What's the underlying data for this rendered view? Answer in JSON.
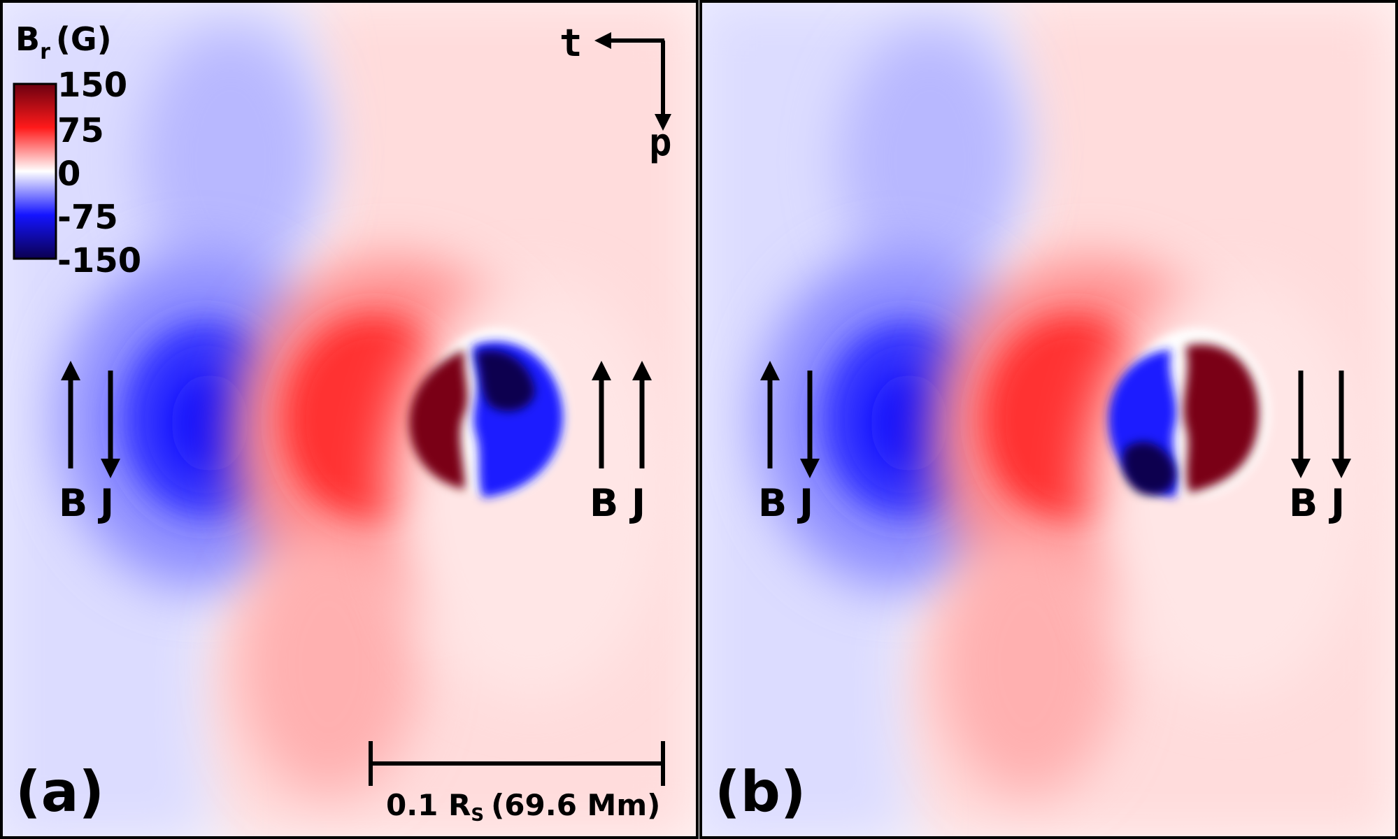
{
  "colorbar": {
    "quantity": "B",
    "quantity_sub": "r",
    "unit": "(G)",
    "ticks": [
      "150",
      "75",
      "0",
      "-75",
      "-150"
    ],
    "range": [
      -150,
      150
    ],
    "colors": {
      "max": "#6b0010",
      "pos": "#ff1a1a",
      "zero": "#ffffff",
      "neg": "#1414ff",
      "min": "#0b0050"
    }
  },
  "compass": {
    "horizontal_label": "t",
    "vertical_label": "p"
  },
  "panels": [
    {
      "label": "(a)",
      "arrow_pairs": [
        {
          "b_label": "B",
          "j_label": "J",
          "b_dir": "up",
          "j_dir": "down"
        },
        {
          "b_label": "B",
          "j_label": "J",
          "b_dir": "up",
          "j_dir": "up"
        }
      ]
    },
    {
      "label": "(b)",
      "arrow_pairs": [
        {
          "b_label": "B",
          "j_label": "J",
          "b_dir": "up",
          "j_dir": "down"
        },
        {
          "b_label": "B",
          "j_label": "J",
          "b_dir": "down",
          "j_dir": "down"
        }
      ]
    }
  ],
  "scale_bar": {
    "value": "0.1 R",
    "value_sub": "S",
    "detail": "(69.6 Mm)"
  }
}
